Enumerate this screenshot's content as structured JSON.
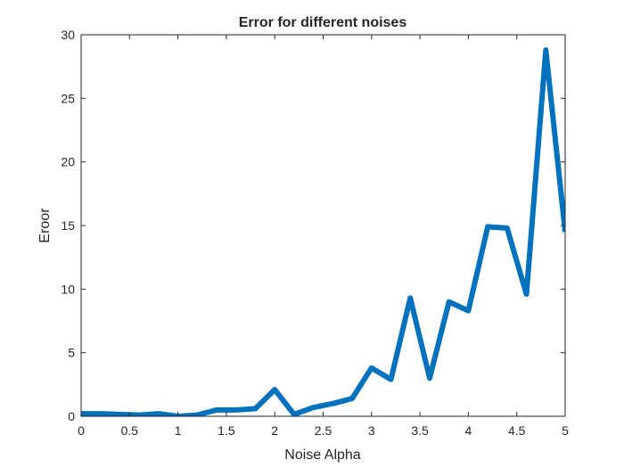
{
  "chart_data": {
    "type": "line",
    "title": "Error for different noises",
    "xlabel": "Noise Alpha",
    "ylabel": "Eroor",
    "xlim": [
      0,
      5
    ],
    "ylim": [
      0,
      30
    ],
    "xticks": [
      0,
      0.5,
      1,
      1.5,
      2,
      2.5,
      3,
      3.5,
      4,
      4.5,
      5
    ],
    "yticks": [
      0,
      5,
      10,
      15,
      20,
      25,
      30
    ],
    "xtick_labels": [
      "0",
      "0.5",
      "1",
      "1.5",
      "2",
      "2.5",
      "3",
      "3.5",
      "4",
      "4.5",
      "5"
    ],
    "ytick_labels": [
      "0",
      "5",
      "10",
      "15",
      "20",
      "25",
      "30"
    ],
    "grid": false,
    "box": true,
    "line_color": "#0072BD",
    "series": [
      {
        "x": [
          0,
          0.2,
          0.4,
          0.6,
          0.8,
          1.0,
          1.2,
          1.4,
          1.6,
          1.8,
          2.0,
          2.2,
          2.4,
          2.6,
          2.8,
          3.0,
          3.2,
          3.4,
          3.6,
          3.8,
          4.0,
          4.2,
          4.4,
          4.6,
          4.8,
          5.0
        ],
        "values": [
          0.2,
          0.2,
          0.15,
          0.1,
          0.2,
          0.0,
          0.1,
          0.5,
          0.5,
          0.6,
          2.1,
          0.15,
          0.7,
          1.0,
          1.4,
          3.8,
          2.9,
          9.3,
          3.0,
          9.0,
          8.3,
          14.9,
          14.8,
          9.6,
          28.8,
          14.5
        ]
      }
    ]
  }
}
